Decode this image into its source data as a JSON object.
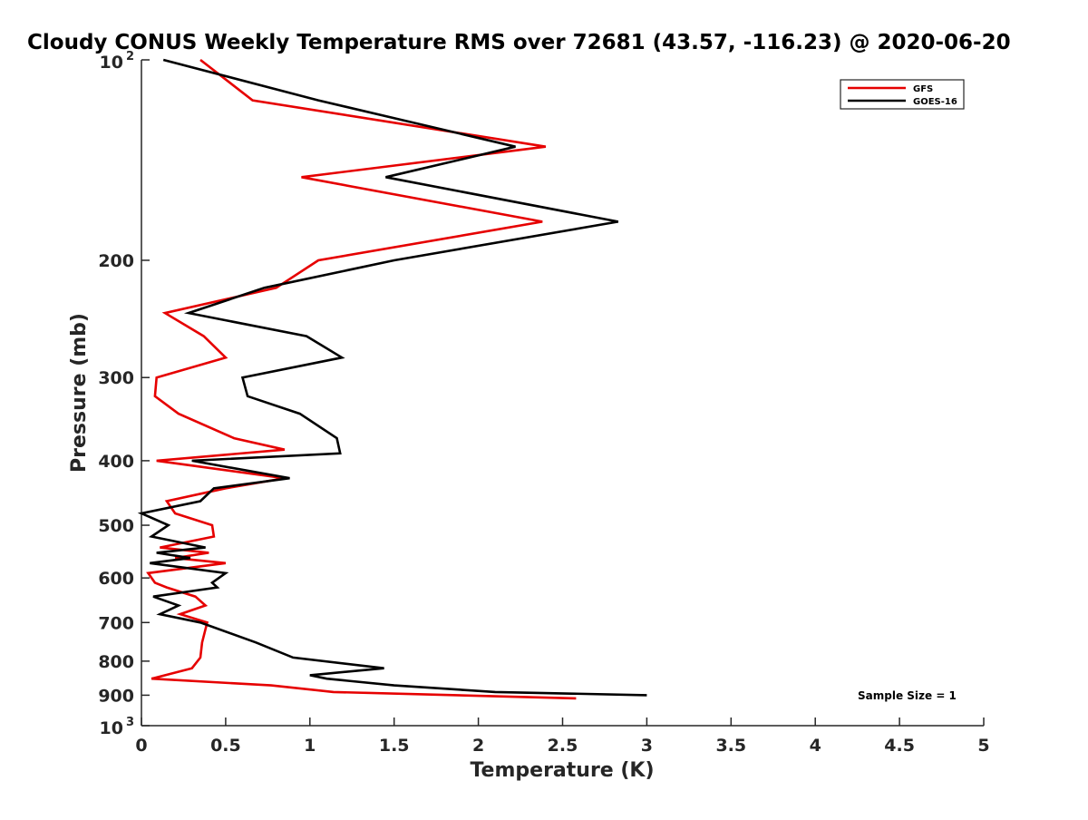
{
  "chart_data": {
    "type": "line",
    "title": "Cloudy CONUS Weekly Temperature RMS over 72681 (43.57, -116.23) @ 2020-06-20",
    "xlabel": "Temperature (K)",
    "ylabel": "Pressure (mb)",
    "xlim": [
      0,
      5
    ],
    "ylim": [
      100,
      1000
    ],
    "y_scale": "log",
    "y_reversed": true,
    "x_ticks": [
      "0",
      "0.5",
      "1",
      "1.5",
      "2",
      "2.5",
      "3",
      "3.5",
      "4",
      "4.5",
      "5"
    ],
    "y_ticks": [
      {
        "value": 100,
        "base": "10",
        "exp": "2"
      },
      {
        "value": 200,
        "label": "200"
      },
      {
        "value": 300,
        "label": "300"
      },
      {
        "value": 400,
        "label": "400"
      },
      {
        "value": 500,
        "label": "500"
      },
      {
        "value": 600,
        "label": "600"
      },
      {
        "value": 700,
        "label": "700"
      },
      {
        "value": 800,
        "label": "800"
      },
      {
        "value": 900,
        "label": "900"
      },
      {
        "value": 1000,
        "base": "10",
        "exp": "3"
      }
    ],
    "legend_position": "top-right",
    "grid": false,
    "annotation": "Sample Size = 1",
    "series": [
      {
        "name": "GFS",
        "color": "#e60000",
        "points": [
          [
            0.35,
            100
          ],
          [
            0.66,
            115
          ],
          [
            2.4,
            135
          ],
          [
            0.95,
            150
          ],
          [
            2.38,
            175
          ],
          [
            1.05,
            200
          ],
          [
            0.8,
            220
          ],
          [
            0.14,
            240
          ],
          [
            0.37,
            260
          ],
          [
            0.5,
            280
          ],
          [
            0.09,
            300
          ],
          [
            0.08,
            320
          ],
          [
            0.22,
            340
          ],
          [
            0.55,
            370
          ],
          [
            0.85,
            385
          ],
          [
            0.09,
            400
          ],
          [
            0.85,
            425
          ],
          [
            0.5,
            440
          ],
          [
            0.15,
            460
          ],
          [
            0.2,
            480
          ],
          [
            0.42,
            500
          ],
          [
            0.43,
            520
          ],
          [
            0.11,
            540
          ],
          [
            0.4,
            550
          ],
          [
            0.2,
            560
          ],
          [
            0.5,
            570
          ],
          [
            0.04,
            590
          ],
          [
            0.08,
            610
          ],
          [
            0.15,
            620
          ],
          [
            0.32,
            640
          ],
          [
            0.38,
            660
          ],
          [
            0.23,
            680
          ],
          [
            0.39,
            700
          ],
          [
            0.36,
            750
          ],
          [
            0.35,
            790
          ],
          [
            0.3,
            820
          ],
          [
            0.06,
            850
          ],
          [
            0.77,
            870
          ],
          [
            1.14,
            890
          ],
          [
            2.58,
            910
          ]
        ]
      },
      {
        "name": "GOES-16",
        "color": "#000000",
        "points": [
          [
            0.13,
            100
          ],
          [
            1.05,
            115
          ],
          [
            2.22,
            135
          ],
          [
            1.45,
            150
          ],
          [
            2.83,
            175
          ],
          [
            1.5,
            200
          ],
          [
            0.73,
            220
          ],
          [
            0.28,
            240
          ],
          [
            0.98,
            260
          ],
          [
            1.19,
            280
          ],
          [
            0.6,
            300
          ],
          [
            0.63,
            320
          ],
          [
            0.94,
            340
          ],
          [
            1.16,
            370
          ],
          [
            1.18,
            390
          ],
          [
            0.3,
            400
          ],
          [
            0.88,
            425
          ],
          [
            0.43,
            440
          ],
          [
            0.35,
            460
          ],
          [
            0.0,
            480
          ],
          [
            0.16,
            500
          ],
          [
            0.06,
            520
          ],
          [
            0.38,
            540
          ],
          [
            0.09,
            550
          ],
          [
            0.29,
            560
          ],
          [
            0.05,
            570
          ],
          [
            0.5,
            590
          ],
          [
            0.42,
            610
          ],
          [
            0.45,
            620
          ],
          [
            0.07,
            640
          ],
          [
            0.22,
            660
          ],
          [
            0.11,
            680
          ],
          [
            0.35,
            700
          ],
          [
            0.68,
            750
          ],
          [
            0.9,
            790
          ],
          [
            1.44,
            820
          ],
          [
            1.0,
            840
          ],
          [
            1.1,
            850
          ],
          [
            1.5,
            870
          ],
          [
            2.1,
            890
          ],
          [
            3.0,
            900
          ]
        ]
      }
    ]
  }
}
